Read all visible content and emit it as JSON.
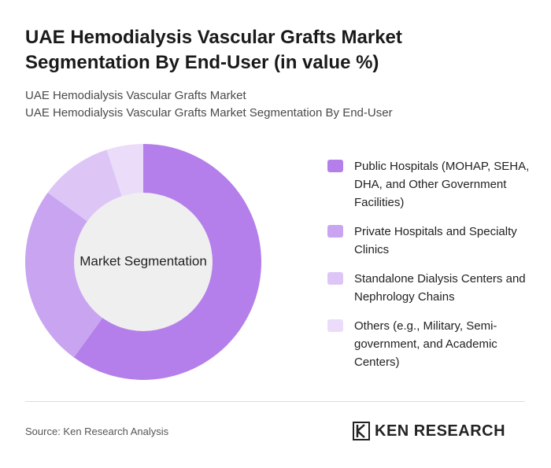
{
  "chart_data": {
    "type": "pie",
    "title": "UAE Hemodialysis Vascular Grafts Market Segmentation By End-User (in value %)",
    "subtitle": [
      "UAE Hemodialysis Vascular Grafts Market",
      "UAE Hemodialysis Vascular Grafts Market Segmentation By End-User"
    ],
    "center_label": "Market Segmentation",
    "categories": [
      "Public Hospitals (MOHAP, SEHA, DHA, and Other Government Facilities)",
      "Private Hospitals and Specialty Clinics",
      "Standalone Dialysis Centers and Nephrology Chains",
      "Others (e.g., Military, Semi-government, and Academic Centers)"
    ],
    "values": [
      60,
      25,
      10,
      5
    ],
    "colors": [
      "#b47fea",
      "#c9a4f0",
      "#ddc6f6",
      "#ebdcfa"
    ]
  },
  "footer": {
    "source": "Source: Ken Research Analysis",
    "logo": "KEN RESEARCH"
  }
}
